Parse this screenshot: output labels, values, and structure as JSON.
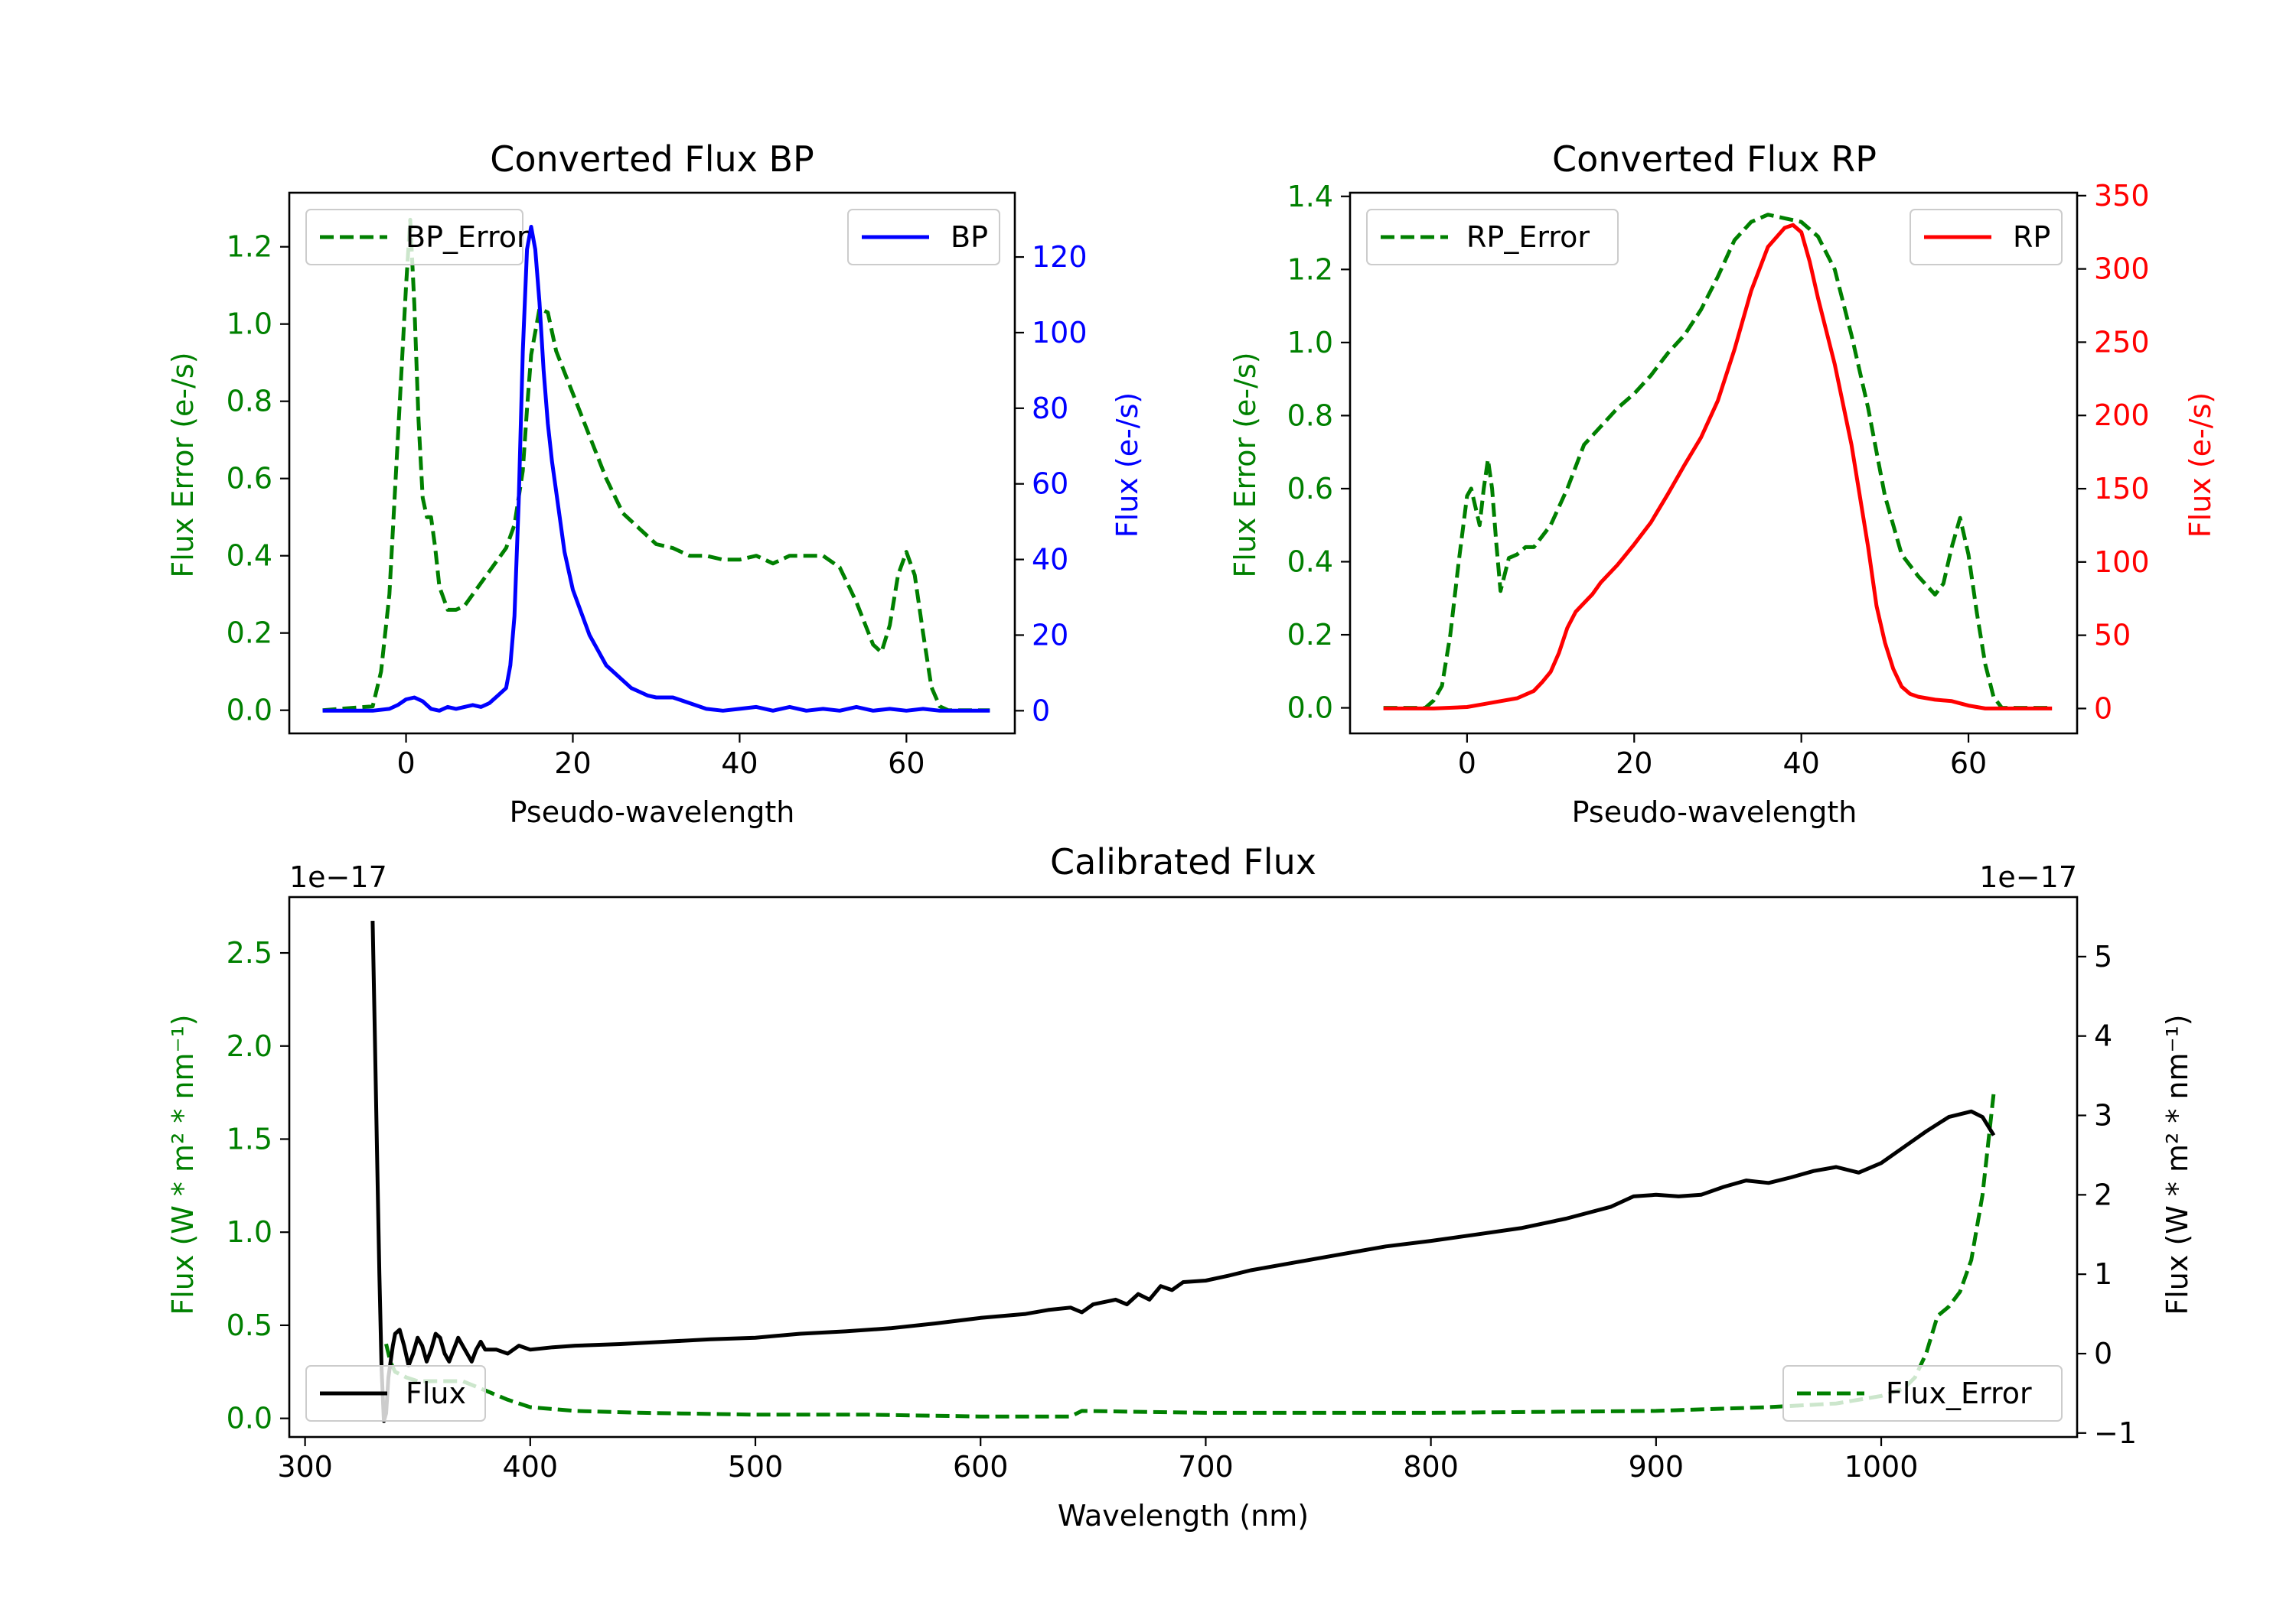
{
  "colors": {
    "green": "#008000",
    "blue": "#0000ff",
    "red": "#ff0000",
    "black": "#000000",
    "legend_border": "#cccccc"
  },
  "chart_data": [
    {
      "id": "bp",
      "type": "line",
      "title": "Converted Flux BP",
      "xlabel": "Pseudo-wavelength",
      "ylabel_left": "Flux Error (e-/s)",
      "ylabel_right": "Flux (e-/s)",
      "xlim": [
        -14,
        73
      ],
      "ylim_left": [
        -0.06,
        1.34
      ],
      "ylim_right": [
        -6,
        137
      ],
      "xticks": [
        0,
        20,
        40,
        60
      ],
      "yticks_left": [
        0.0,
        0.2,
        0.4,
        0.6,
        0.8,
        1.0,
        1.2
      ],
      "yticks_right": [
        0,
        20,
        40,
        60,
        80,
        100,
        120
      ],
      "legend_left": {
        "label": "BP_Error",
        "position": "upper left"
      },
      "legend_right": {
        "label": "BP",
        "position": "upper right"
      },
      "series": [
        {
          "name": "BP_Error",
          "axis": "left",
          "color": "green",
          "dashed": true,
          "x": [
            -10,
            -4,
            -3,
            -2,
            -1,
            0,
            0.5,
            1,
            1.5,
            2,
            2.5,
            3,
            3.5,
            4,
            5,
            6,
            7,
            8,
            10,
            12,
            13,
            14,
            14.5,
            15,
            16,
            17,
            18,
            20,
            22,
            24,
            26,
            28,
            30,
            32,
            34,
            36,
            38,
            40,
            42,
            44,
            46,
            48,
            50,
            52,
            54,
            56,
            57,
            58,
            59,
            60,
            61,
            62,
            63,
            64,
            65,
            70
          ],
          "y": [
            0.0,
            0.01,
            0.1,
            0.3,
            0.7,
            1.1,
            1.27,
            1.05,
            0.75,
            0.55,
            0.5,
            0.5,
            0.42,
            0.32,
            0.26,
            0.26,
            0.27,
            0.3,
            0.36,
            0.42,
            0.48,
            0.62,
            0.78,
            0.92,
            1.04,
            1.03,
            0.93,
            0.82,
            0.71,
            0.6,
            0.51,
            0.47,
            0.43,
            0.42,
            0.4,
            0.4,
            0.39,
            0.39,
            0.4,
            0.38,
            0.4,
            0.4,
            0.4,
            0.37,
            0.28,
            0.17,
            0.15,
            0.22,
            0.35,
            0.41,
            0.35,
            0.2,
            0.06,
            0.01,
            0.0,
            0.0
          ]
        },
        {
          "name": "BP",
          "axis": "right",
          "color": "blue",
          "dashed": false,
          "x": [
            -10,
            -6,
            -4,
            -2,
            -1,
            0,
            1,
            2,
            3,
            4,
            5,
            6,
            7,
            8,
            9,
            10,
            11,
            12,
            12.5,
            13,
            13.5,
            14,
            14.5,
            15,
            15.5,
            16,
            16.5,
            17,
            17.5,
            18,
            19,
            20,
            21,
            22,
            23,
            24,
            25,
            26,
            27,
            28,
            29,
            30,
            31,
            32,
            34,
            36,
            38,
            40,
            42,
            44,
            46,
            48,
            50,
            52,
            54,
            56,
            58,
            60,
            62,
            64,
            66,
            70
          ],
          "y": [
            0,
            0,
            0,
            0.5,
            1.5,
            3,
            3.5,
            2.5,
            0.5,
            0,
            1,
            0.5,
            1,
            1.5,
            1,
            2,
            4,
            6,
            12,
            25,
            55,
            95,
            122,
            128,
            122,
            108,
            90,
            76,
            66,
            58,
            42,
            32,
            26,
            20,
            16,
            12,
            10,
            8,
            6,
            5,
            4,
            3.5,
            3.5,
            3.5,
            2,
            0.5,
            0,
            0.5,
            1,
            0,
            1,
            0,
            0.5,
            0,
            1,
            0,
            0.5,
            0,
            0.5,
            0,
            0,
            0
          ]
        }
      ]
    },
    {
      "id": "rp",
      "type": "line",
      "title": "Converted Flux RP",
      "xlabel": "Pseudo-wavelength",
      "ylabel_left": "Flux Error (e-/s)",
      "ylabel_right": "Flux (e-/s)",
      "xlim": [
        -14,
        73
      ],
      "ylim_left": [
        -0.07,
        1.41
      ],
      "ylim_right": [
        -17,
        352
      ],
      "xticks": [
        0,
        20,
        40,
        60
      ],
      "yticks_left": [
        0.0,
        0.2,
        0.4,
        0.6,
        0.8,
        1.0,
        1.2,
        1.4
      ],
      "yticks_right": [
        0,
        50,
        100,
        150,
        200,
        250,
        300,
        350
      ],
      "legend_left": {
        "label": "RP_Error",
        "position": "upper left"
      },
      "legend_right": {
        "label": "RP",
        "position": "upper right"
      },
      "series": [
        {
          "name": "RP_Error",
          "axis": "left",
          "color": "green",
          "dashed": true,
          "x": [
            -10,
            -5,
            -4,
            -3,
            -2,
            -1,
            0,
            0.5,
            1,
            1.5,
            2,
            2.5,
            3,
            3.5,
            4,
            5,
            6,
            7,
            8,
            10,
            12,
            14,
            16,
            18,
            20,
            22,
            24,
            26,
            28,
            30,
            32,
            34,
            36,
            38,
            40,
            42,
            44,
            46,
            48,
            50,
            52,
            54,
            56,
            57,
            58,
            59,
            60,
            61,
            62,
            63,
            64,
            70
          ],
          "y": [
            0.0,
            0.0,
            0.02,
            0.06,
            0.2,
            0.4,
            0.58,
            0.6,
            0.55,
            0.5,
            0.6,
            0.68,
            0.6,
            0.45,
            0.32,
            0.41,
            0.42,
            0.44,
            0.44,
            0.5,
            0.6,
            0.72,
            0.77,
            0.82,
            0.86,
            0.91,
            0.97,
            1.02,
            1.09,
            1.18,
            1.28,
            1.33,
            1.35,
            1.34,
            1.33,
            1.29,
            1.2,
            1.02,
            0.82,
            0.58,
            0.42,
            0.36,
            0.31,
            0.34,
            0.44,
            0.52,
            0.42,
            0.26,
            0.12,
            0.03,
            0.0,
            0.0
          ]
        },
        {
          "name": "RP",
          "axis": "right",
          "color": "red",
          "dashed": false,
          "x": [
            -10,
            -4,
            0,
            2,
            4,
            6,
            8,
            9,
            10,
            11,
            12,
            13,
            14,
            15,
            16,
            18,
            20,
            22,
            24,
            26,
            28,
            30,
            32,
            34,
            36,
            38,
            39,
            40,
            41,
            42,
            44,
            46,
            48,
            49,
            50,
            51,
            52,
            53,
            54,
            55,
            56,
            58,
            60,
            62,
            64,
            70
          ],
          "y": [
            0,
            0,
            1,
            3,
            5,
            7,
            12,
            18,
            25,
            38,
            55,
            66,
            72,
            78,
            86,
            98,
            112,
            127,
            146,
            166,
            185,
            210,
            245,
            285,
            315,
            328,
            330,
            325,
            305,
            280,
            235,
            180,
            110,
            70,
            45,
            27,
            15,
            10,
            8,
            7,
            6,
            5,
            2,
            0,
            0,
            0
          ]
        }
      ]
    },
    {
      "id": "cal",
      "type": "line",
      "title": "Calibrated Flux",
      "xlabel": "Wavelength (nm)",
      "ylabel_left": "Flux (W * m² * nm⁻¹)",
      "ylabel_right": "Flux (W * m² * nm⁻¹)",
      "offset_left": "1e−17",
      "offset_right": "1e−17",
      "xlim": [
        293,
        1087
      ],
      "ylim_left": [
        -0.1,
        2.8
      ],
      "ylim_right": [
        -1.05,
        5.75
      ],
      "xticks": [
        300,
        400,
        500,
        600,
        700,
        800,
        900,
        1000
      ],
      "yticks_left": [
        0.0,
        0.5,
        1.0,
        1.5,
        2.0,
        2.5
      ],
      "yticks_right": [
        -1,
        0,
        1,
        2,
        3,
        4,
        5
      ],
      "ytick_labels_right": [
        "−1",
        "0",
        "1",
        "2",
        "3",
        "4",
        "5"
      ],
      "legend_left": {
        "label": "Flux",
        "position": "lower left"
      },
      "legend_right": {
        "label": "Flux_Error",
        "position": "lower right"
      },
      "series": [
        {
          "name": "Flux_Error",
          "axis": "left",
          "color": "green",
          "dashed": true,
          "x": [
            336,
            338,
            340,
            345,
            350,
            360,
            370,
            380,
            390,
            400,
            420,
            450,
            500,
            550,
            600,
            640,
            645,
            700,
            800,
            900,
            950,
            980,
            1000,
            1010,
            1015,
            1020,
            1025,
            1030,
            1035,
            1040,
            1045,
            1050
          ],
          "y": [
            0.4,
            0.3,
            0.25,
            0.22,
            0.2,
            0.2,
            0.2,
            0.15,
            0.1,
            0.06,
            0.04,
            0.03,
            0.02,
            0.02,
            0.01,
            0.01,
            0.04,
            0.03,
            0.03,
            0.04,
            0.06,
            0.08,
            0.12,
            0.16,
            0.22,
            0.35,
            0.55,
            0.6,
            0.68,
            0.85,
            1.2,
            1.75
          ]
        },
        {
          "name": "Flux",
          "axis": "right",
          "color": "black",
          "dashed": false,
          "x": [
            330,
            331,
            332,
            333,
            334,
            335,
            336,
            337,
            338,
            339,
            340,
            342,
            344,
            346,
            348,
            350,
            352,
            354,
            356,
            358,
            360,
            362,
            364,
            366,
            368,
            370,
            372,
            374,
            376,
            378,
            380,
            385,
            390,
            395,
            400,
            410,
            420,
            440,
            460,
            480,
            500,
            520,
            540,
            560,
            580,
            600,
            620,
            630,
            640,
            645,
            650,
            660,
            665,
            670,
            675,
            680,
            685,
            690,
            700,
            710,
            720,
            740,
            760,
            780,
            800,
            820,
            840,
            860,
            880,
            890,
            900,
            910,
            920,
            930,
            940,
            950,
            960,
            970,
            980,
            990,
            1000,
            1010,
            1020,
            1030,
            1040,
            1045,
            1050
          ],
          "y": [
            5.45,
            4.0,
            2.5,
            1.0,
            -0.2,
            -0.85,
            -0.75,
            -0.3,
            -0.1,
            0.1,
            0.25,
            0.3,
            0.1,
            -0.15,
            0.0,
            0.2,
            0.1,
            -0.1,
            0.05,
            0.25,
            0.2,
            0.0,
            -0.1,
            0.05,
            0.2,
            0.1,
            0.0,
            -0.1,
            0.05,
            0.15,
            0.05,
            0.05,
            0.0,
            0.1,
            0.05,
            0.08,
            0.1,
            0.12,
            0.15,
            0.18,
            0.2,
            0.25,
            0.28,
            0.32,
            0.38,
            0.45,
            0.5,
            0.55,
            0.58,
            0.52,
            0.62,
            0.68,
            0.62,
            0.75,
            0.68,
            0.85,
            0.8,
            0.9,
            0.92,
            0.98,
            1.05,
            1.15,
            1.25,
            1.35,
            1.42,
            1.5,
            1.58,
            1.7,
            1.85,
            1.98,
            2.0,
            1.98,
            2.0,
            2.1,
            2.18,
            2.15,
            2.22,
            2.3,
            2.35,
            2.28,
            2.4,
            2.6,
            2.8,
            2.98,
            3.05,
            2.98,
            2.75
          ]
        }
      ]
    }
  ]
}
